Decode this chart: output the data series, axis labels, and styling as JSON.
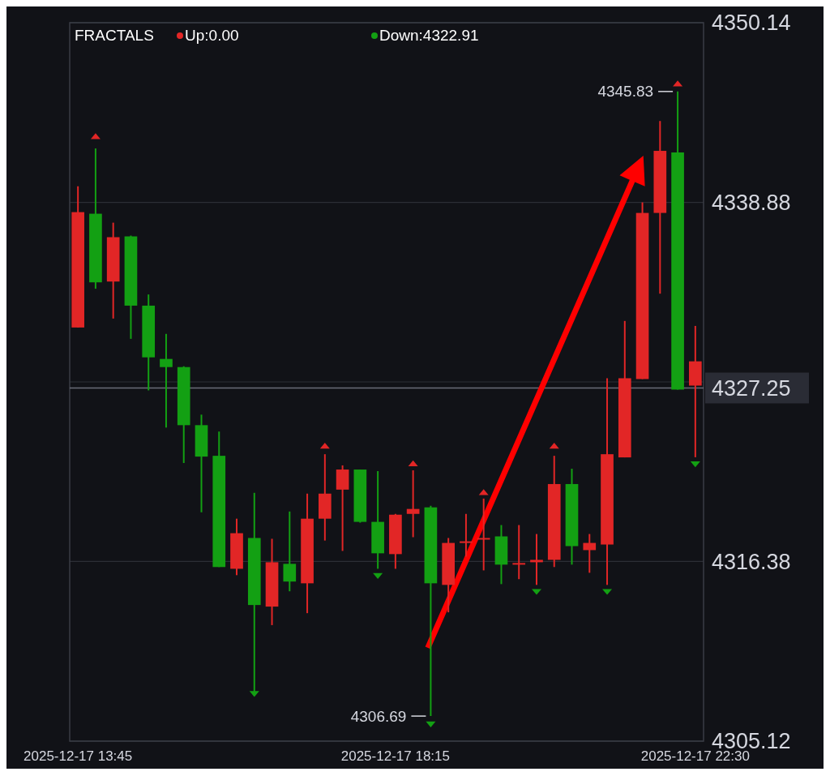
{
  "chart_data": {
    "type": "candlestick",
    "x": [
      "2025-12-17T13:45",
      "2025-12-17T14:00",
      "2025-12-17T14:15",
      "2025-12-17T14:30",
      "2025-12-17T14:45",
      "2025-12-17T15:00",
      "2025-12-17T15:15",
      "2025-12-17T15:30",
      "2025-12-17T15:45",
      "2025-12-17T16:00",
      "2025-12-17T16:15",
      "2025-12-17T16:30",
      "2025-12-17T16:45",
      "2025-12-17T17:00",
      "2025-12-17T17:15",
      "2025-12-17T17:30",
      "2025-12-17T17:45",
      "2025-12-17T18:00",
      "2025-12-17T18:15",
      "2025-12-17T18:30",
      "2025-12-17T18:45",
      "2025-12-17T19:00",
      "2025-12-17T19:15",
      "2025-12-17T19:30",
      "2025-12-17T19:45",
      "2025-12-17T20:00",
      "2025-12-17T20:15",
      "2025-12-17T20:30",
      "2025-12-17T20:45",
      "2025-12-17T21:00",
      "2025-12-17T21:15",
      "2025-12-17T21:30",
      "2025-12-17T21:45",
      "2025-12-17T22:00",
      "2025-12-17T22:15",
      "2025-12-17T22:30"
    ],
    "ohlc": [
      [
        4331.04,
        4339.89,
        4331.04,
        4338.27
      ],
      [
        4338.17,
        4342.26,
        4333.47,
        4333.87
      ],
      [
        4333.92,
        4337.61,
        4331.6,
        4336.7
      ],
      [
        4336.75,
        4336.8,
        4330.33,
        4332.41
      ],
      [
        4332.41,
        4333.11,
        4327.1,
        4329.17
      ],
      [
        4329.07,
        4330.64,
        4324.77,
        4328.56
      ],
      [
        4328.56,
        4328.61,
        4322.55,
        4324.92
      ],
      [
        4324.92,
        4325.58,
        4319.46,
        4322.95
      ],
      [
        4323.0,
        4324.52,
        4316.03,
        4316.03
      ],
      [
        4315.92,
        4319.06,
        4315.52,
        4318.15
      ],
      [
        4317.85,
        4320.68,
        4307.99,
        4313.65
      ],
      [
        4313.55,
        4317.8,
        4312.39,
        4316.33
      ],
      [
        4316.23,
        4319.51,
        4314.51,
        4315.12
      ],
      [
        4315.01,
        4320.63,
        4313.14,
        4319.06
      ],
      [
        4319.06,
        4323.1,
        4317.69,
        4320.63
      ],
      [
        4320.88,
        4322.4,
        4317.04,
        4322.14
      ],
      [
        4322.14,
        4322.14,
        4318.81,
        4318.86
      ],
      [
        4318.86,
        4322.04,
        4315.92,
        4316.89
      ],
      [
        4316.84,
        4319.36,
        4315.92,
        4319.31
      ],
      [
        4319.36,
        4322.09,
        4317.9,
        4319.67
      ],
      [
        4319.77,
        4319.87,
        4306.69,
        4315.01
      ],
      [
        4314.91,
        4317.85,
        4313.19,
        4317.54
      ],
      [
        4317.59,
        4319.36,
        4316.68,
        4317.64
      ],
      [
        4317.8,
        4320.32,
        4315.82,
        4317.85
      ],
      [
        4317.95,
        4318.66,
        4314.96,
        4316.18
      ],
      [
        4316.23,
        4318.66,
        4315.27,
        4316.28
      ],
      [
        4316.33,
        4318.1,
        4314.91,
        4316.48
      ],
      [
        4316.48,
        4323.0,
        4316.03,
        4321.23
      ],
      [
        4321.23,
        4322.19,
        4316.18,
        4317.34
      ],
      [
        4317.09,
        4318.1,
        4315.67,
        4317.54
      ],
      [
        4317.44,
        4327.86,
        4314.91,
        4323.1
      ],
      [
        4322.9,
        4331.45,
        4322.9,
        4327.86
      ],
      [
        4327.81,
        4338.88,
        4327.81,
        4338.22
      ],
      [
        4338.22,
        4343.98,
        4333.16,
        4342.11
      ],
      [
        4342.01,
        4345.83,
        4327.15,
        4327.15
      ],
      [
        4327.4,
        4331.14,
        4322.91,
        4328.92
      ]
    ],
    "colors": [
      "#e22626",
      "#13a013",
      "#e22626",
      "#13a013",
      "#13a013",
      "#13a013",
      "#13a013",
      "#13a013",
      "#13a013",
      "#e22626",
      "#13a013",
      "#e22626",
      "#13a013",
      "#e22626",
      "#e22626",
      "#e22626",
      "#13a013",
      "#13a013",
      "#e22626",
      "#e22626",
      "#13a013",
      "#e22626",
      "#e22626",
      "#e22626",
      "#13a013",
      "#e22626",
      "#e22626",
      "#e22626",
      "#13a013",
      "#e22626",
      "#e22626",
      "#e22626",
      "#e22626",
      "#e22626",
      "#13a013",
      "#e22626"
    ],
    "series": [
      {
        "type": "scatter",
        "name": "Up:0.00",
        "color": "#e22626",
        "x": [
          "2025-12-17T14:00",
          "2025-12-17T17:15",
          "2025-12-17T18:30",
          "2025-12-17T19:30",
          "2025-12-17T20:30",
          "2025-12-17T22:15"
        ],
        "values": [
          4343.0,
          4323.6,
          4322.5,
          4320.7,
          4323.6,
          4346.3
        ]
      },
      {
        "type": "scatter",
        "name": "Down:4322.91",
        "color": "#13a013",
        "x": [
          "2025-12-17T16:15",
          "2025-12-17T18:00",
          "2025-12-17T18:45",
          "2025-12-17T20:15",
          "2025-12-17T21:15",
          "2025-12-17T22:30"
        ],
        "values": [
          4308.1,
          4315.5,
          4306.2,
          4314.5,
          4314.5,
          4322.5
        ]
      }
    ],
    "marker": "triangle",
    "legend_title": "FRACTALS",
    "legend": "top left",
    "xlim": [
      "2025-12-17T13:38",
      "2025-12-17T22:37"
    ],
    "xticks": [
      {
        "value": "2025-12-17T13:45",
        "label": "2025-12-17 13:45"
      },
      {
        "value": "2025-12-17T18:15",
        "label": "2025-12-17 18:15"
      },
      {
        "value": "2025-12-17T22:30",
        "label": "2025-12-17 22:30"
      }
    ],
    "ylim": [
      4305.12,
      4350.14
    ],
    "yticks": [
      4305.12,
      4316.38,
      {
        "value": 4327.63,
        "label": null
      },
      4338.88,
      4350.14
    ],
    "grid": "y",
    "ref_lines": [
      {
        "axis": "y",
        "value": 4327.25,
        "label": "4327.25",
        "color": "#6a6d78"
      }
    ],
    "annotations": [
      {
        "text": "4345.83",
        "x": "2025-12-17T22:15",
        "y": 4345.83
      },
      {
        "text": "4306.69",
        "x": "2025-12-17T18:45",
        "y": 4306.69
      }
    ]
  }
}
